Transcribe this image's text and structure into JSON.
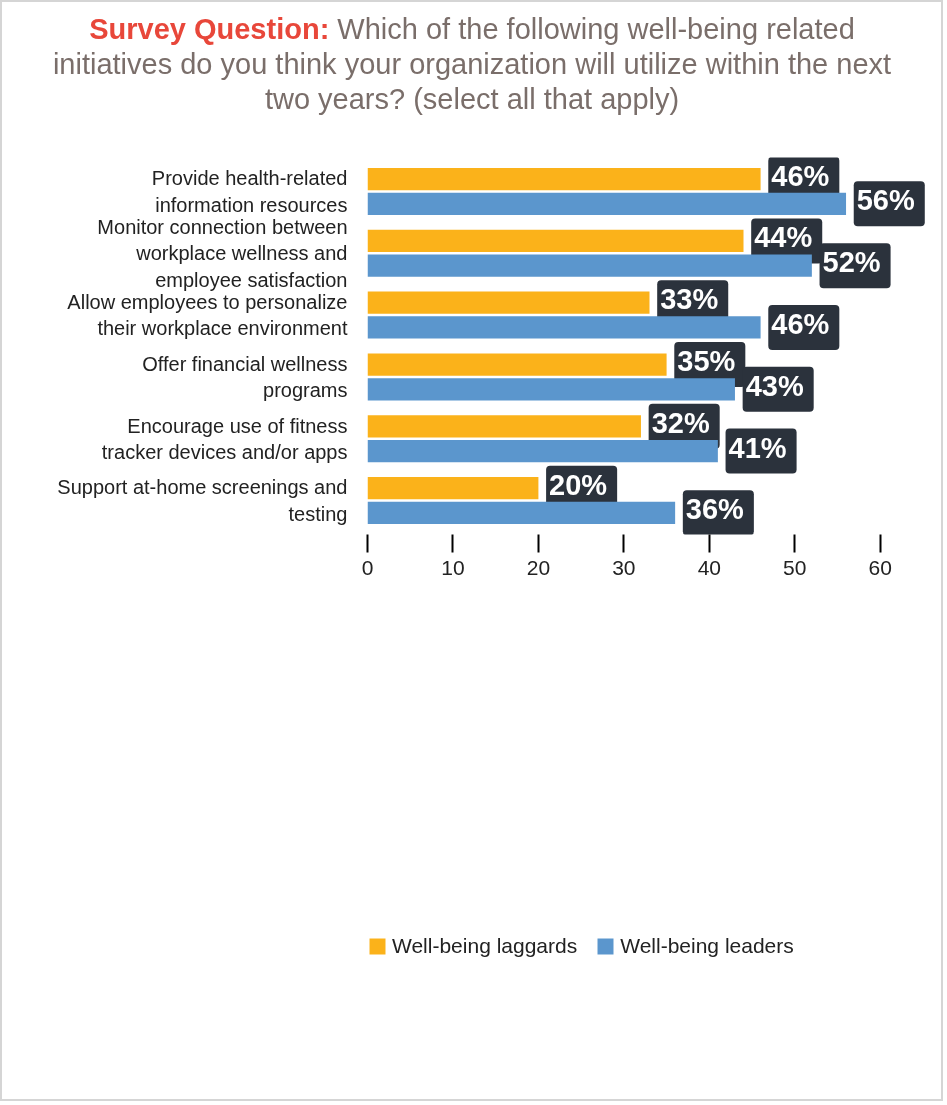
{
  "chart_data": {
    "type": "bar",
    "orientation": "horizontal",
    "title": "Survey Question:",
    "subtitle": "Which of the following well-being related initiatives do you think your organization will utilize within the next two years? (select all that apply)",
    "categories": [
      "Provide health-related information resources",
      "Monitor connection between workplace wellness and employee satisfaction",
      "Allow employees to personalize their workplace environment",
      "Offer financial wellness programs",
      "Encourage use of fitness tracker devices and/or apps",
      "Support at-home screenings and testing"
    ],
    "series": [
      {
        "name": "Well-being laggards",
        "color": "#fbb21a",
        "values": [
          46,
          44,
          33,
          35,
          32,
          20
        ],
        "value_labels": [
          "46%",
          "44%",
          "33%",
          "35%",
          "32%",
          "20%"
        ]
      },
      {
        "name": "Well-being leaders",
        "color": "#5b96cd",
        "values": [
          56,
          52,
          46,
          43,
          41,
          36
        ],
        "value_labels": [
          "56%",
          "52%",
          "46%",
          "43%",
          "41%",
          "36%"
        ]
      }
    ],
    "xlim": [
      0,
      66
    ],
    "xticks": [
      0,
      10,
      20,
      30,
      40,
      50,
      60
    ],
    "grid": false,
    "legend": "bottom"
  }
}
